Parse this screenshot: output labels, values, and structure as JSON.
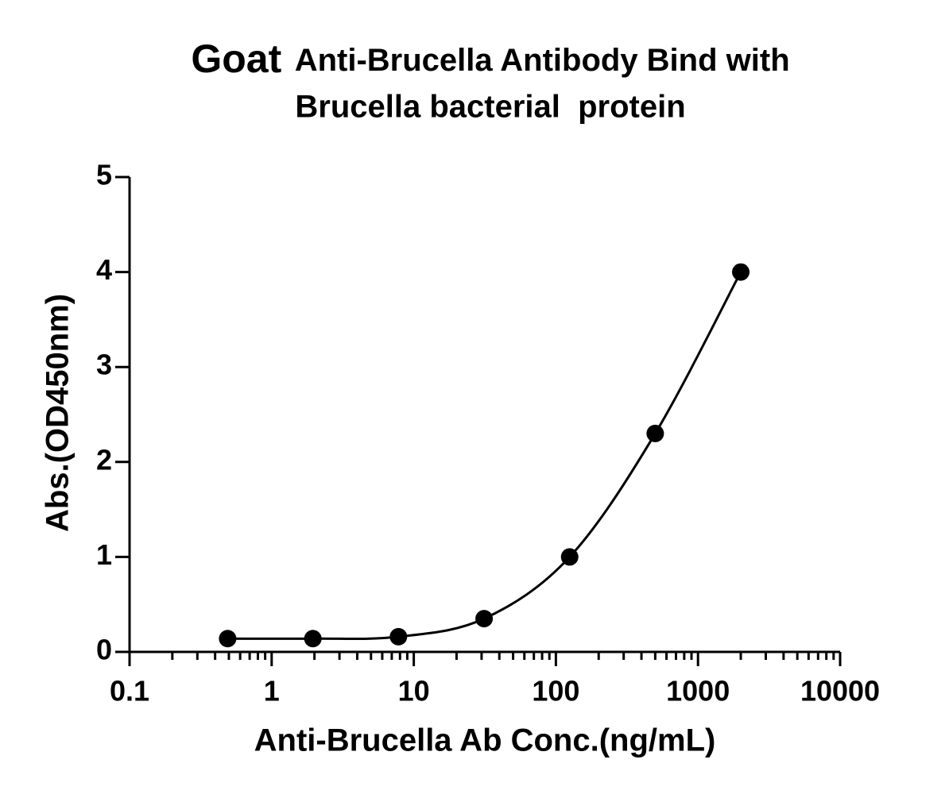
{
  "chart_data": {
    "type": "scatter",
    "title": [
      "Goat",
      "Anti-Brucella Antibody Bind with",
      "Brucella bacterial  protein"
    ],
    "xlabel": "Anti-Brucella Ab Conc.(ng/mL)",
    "ylabel": "Abs.(OD450nm)",
    "xscale": "log",
    "xlim": [
      0.1,
      10000
    ],
    "xticks": [
      0.1,
      1,
      10,
      100,
      1000,
      10000
    ],
    "ylim": [
      0,
      5
    ],
    "yticks": [
      0,
      1,
      2,
      3,
      4,
      5
    ],
    "line": "smooth",
    "series": [
      {
        "color": "#000000",
        "x": [
          0.49,
          1.95,
          7.8,
          31.25,
          125,
          500,
          2000
        ],
        "values": [
          0.14,
          0.14,
          0.16,
          0.35,
          1.0,
          2.3,
          4.0
        ]
      }
    ]
  }
}
